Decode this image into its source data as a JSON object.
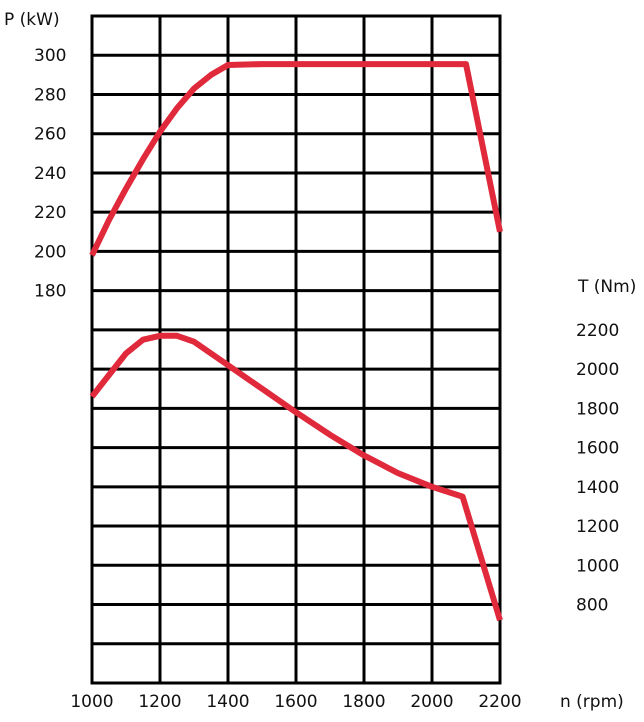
{
  "chart_data": {
    "type": "line",
    "x": {
      "label": "n (rpm)",
      "tick_labels": [
        "1000",
        "1200",
        "1400",
        "1600",
        "1800",
        "2000",
        "2200"
      ],
      "range": [
        1000,
        2200
      ]
    },
    "y_left": {
      "label": "P (kW)",
      "tick_labels": [
        "300",
        "280",
        "260",
        "240",
        "220",
        "200",
        "180"
      ]
    },
    "y_right": {
      "label": "T (Nm)",
      "tick_labels": [
        "2200",
        "2000",
        "1800",
        "1600",
        "1400",
        "1200",
        "1000",
        "800"
      ]
    },
    "grid": true,
    "series": [
      {
        "axis": "left",
        "color": "#e0293a",
        "points": [
          [
            1000,
            198
          ],
          [
            1050,
            216
          ],
          [
            1100,
            232
          ],
          [
            1150,
            247
          ],
          [
            1200,
            261
          ],
          [
            1250,
            273
          ],
          [
            1300,
            283
          ],
          [
            1350,
            290
          ],
          [
            1400,
            295
          ],
          [
            1500,
            295.5
          ],
          [
            1600,
            295.5
          ],
          [
            1800,
            295.5
          ],
          [
            2000,
            295.5
          ],
          [
            2100,
            295.5
          ],
          [
            2200,
            210
          ]
        ]
      },
      {
        "axis": "right",
        "color": "#e0293a",
        "points": [
          [
            1000,
            1860
          ],
          [
            1050,
            1970
          ],
          [
            1100,
            2080
          ],
          [
            1150,
            2150
          ],
          [
            1200,
            2170
          ],
          [
            1250,
            2170
          ],
          [
            1300,
            2140
          ],
          [
            1400,
            2020
          ],
          [
            1500,
            1900
          ],
          [
            1600,
            1780
          ],
          [
            1700,
            1665
          ],
          [
            1800,
            1560
          ],
          [
            1900,
            1470
          ],
          [
            2000,
            1400
          ],
          [
            2090,
            1350
          ],
          [
            2200,
            720
          ]
        ]
      }
    ]
  }
}
